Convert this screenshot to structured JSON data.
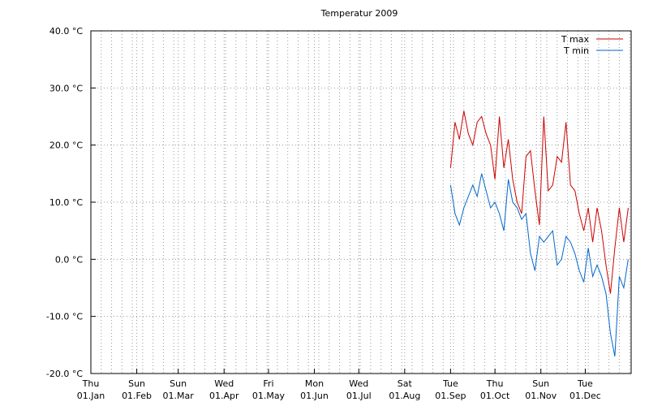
{
  "chart_data": {
    "type": "line",
    "title": "Temperatur 2009",
    "x": [
      "2009-09-01",
      "2009-09-04",
      "2009-09-07",
      "2009-09-10",
      "2009-09-13",
      "2009-09-16",
      "2009-09-19",
      "2009-09-22",
      "2009-09-25",
      "2009-09-28",
      "2009-10-01",
      "2009-10-04",
      "2009-10-07",
      "2009-10-10",
      "2009-10-13",
      "2009-10-16",
      "2009-10-19",
      "2009-10-22",
      "2009-10-25",
      "2009-10-28",
      "2009-10-31",
      "2009-11-03",
      "2009-11-06",
      "2009-11-09",
      "2009-11-12",
      "2009-11-15",
      "2009-11-18",
      "2009-11-21",
      "2009-11-24",
      "2009-11-27",
      "2009-11-30",
      "2009-12-03",
      "2009-12-06",
      "2009-12-09",
      "2009-12-12",
      "2009-12-15",
      "2009-12-18",
      "2009-12-21",
      "2009-12-24",
      "2009-12-27",
      "2009-12-30"
    ],
    "series": [
      {
        "name": "T max",
        "color": "#cc0000",
        "values": [
          16,
          24,
          21,
          26,
          22,
          20,
          24,
          25,
          22,
          20,
          14,
          25,
          16,
          21,
          14,
          10,
          8,
          18,
          19,
          12,
          6,
          25,
          12,
          13,
          18,
          17,
          24,
          13,
          12,
          8,
          5,
          9,
          3,
          9,
          5,
          -1,
          -6,
          2,
          9,
          3,
          9
        ]
      },
      {
        "name": "T min",
        "color": "#0066cc",
        "values": [
          13,
          8,
          6,
          9,
          11,
          13,
          11,
          15,
          12,
          9,
          10,
          8,
          5,
          14,
          10,
          9,
          7,
          8,
          1,
          -2,
          4,
          3,
          4,
          5,
          -1,
          0,
          4,
          3,
          1,
          -2,
          -4,
          2,
          -3,
          -1,
          -3,
          -6,
          -13,
          -17,
          -3,
          -5,
          0
        ]
      }
    ],
    "xlim": [
      "2009-01-01",
      "2010-01-01"
    ],
    "xticks": [
      {
        "value": "2009-01-01",
        "label": [
          "Thu",
          "01.Jan"
        ]
      },
      {
        "value": "2009-02-01",
        "label": [
          "Sun",
          "01.Feb"
        ]
      },
      {
        "value": "2009-03-01",
        "label": [
          "Sun",
          "01.Mar"
        ]
      },
      {
        "value": "2009-04-01",
        "label": [
          "Wed",
          "01.Apr"
        ]
      },
      {
        "value": "2009-05-01",
        "label": [
          "Fri",
          "01.May"
        ]
      },
      {
        "value": "2009-06-01",
        "label": [
          "Mon",
          "01.Jun"
        ]
      },
      {
        "value": "2009-07-01",
        "label": [
          "Wed",
          "01.Jul"
        ]
      },
      {
        "value": "2009-08-01",
        "label": [
          "Sat",
          "01.Aug"
        ]
      },
      {
        "value": "2009-09-01",
        "label": [
          "Tue",
          "01.Sep"
        ]
      },
      {
        "value": "2009-10-01",
        "label": [
          "Thu",
          "01.Oct"
        ]
      },
      {
        "value": "2009-11-01",
        "label": [
          "Sun",
          "01.Nov"
        ]
      },
      {
        "value": "2009-12-01",
        "label": [
          "Tue",
          "01.Dec"
        ]
      }
    ],
    "ylim": [
      -20,
      40
    ],
    "yticks": [
      {
        "value": -20,
        "label": "-20.0 °C"
      },
      {
        "value": -10,
        "label": "-10.0 °C"
      },
      {
        "value": 0,
        "label": "0.0 °C"
      },
      {
        "value": 10,
        "label": "10.0 °C"
      },
      {
        "value": 20,
        "label": "20.0 °C"
      },
      {
        "value": 30,
        "label": "30.0 °C"
      },
      {
        "value": 40,
        "label": "40.0 °C"
      }
    ],
    "grid": true,
    "legend": "top-right"
  }
}
